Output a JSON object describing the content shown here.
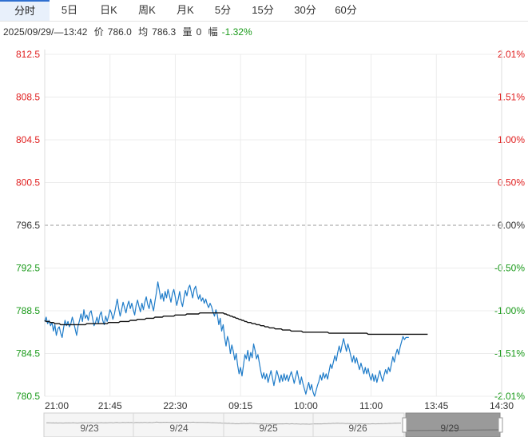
{
  "tabs": [
    {
      "label": "分时",
      "active": true
    },
    {
      "label": "5日",
      "active": false
    },
    {
      "label": "日K",
      "active": false
    },
    {
      "label": "周K",
      "active": false
    },
    {
      "label": "月K",
      "active": false
    },
    {
      "label": "5分",
      "active": false
    },
    {
      "label": "15分",
      "active": false
    },
    {
      "label": "30分",
      "active": false
    },
    {
      "label": "60分",
      "active": false
    }
  ],
  "info": {
    "datetime": "2025/09/29/—13:42",
    "price_label": "价",
    "price": "786.0",
    "avg_label": "均",
    "avg": "786.3",
    "volume_label": "量",
    "volume": "0",
    "change_label": "幅",
    "change": "-1.32%"
  },
  "colors": {
    "price_line": "#1f7cc9",
    "avg_line": "#111111",
    "up": "#e02020",
    "down": "#1a9a1a",
    "neutral": "#333333",
    "grid": "#ececec",
    "zero_line": "#999999"
  },
  "chart_data": {
    "type": "line",
    "title": "",
    "xlabel": "",
    "ylabel": "",
    "base_price": 796.5,
    "ylim": [
      780.5,
      812.5
    ],
    "y_ticks": [
      "812.5",
      "808.5",
      "804.5",
      "800.5",
      "796.5",
      "792.5",
      "788.5",
      "784.5",
      "780.5"
    ],
    "pct_ticks": [
      "2.01%",
      "1.51%",
      "1.00%",
      "0.50%",
      "0.00%",
      "-0.50%",
      "-1.00%",
      "-1.51%",
      "-2.01%"
    ],
    "x_ticks": [
      "21:00",
      "21:45",
      "22:30",
      "09:15",
      "10:00",
      "11:00",
      "13:45",
      "14:30"
    ],
    "x_tick_slots": [
      0,
      45,
      90,
      135,
      180,
      225,
      270,
      315
    ],
    "total_slots": 315,
    "grid": true,
    "series": [
      {
        "name": "",
        "values": [
          787.5,
          787.9,
          787.3,
          787.6,
          787.1,
          787.4,
          786.6,
          787.2,
          786.2,
          786.8,
          787.0,
          786.4,
          786.0,
          786.9,
          787.6,
          787.1,
          787.5,
          787.0,
          787.3,
          787.9,
          787.4,
          786.8,
          786.2,
          787.1,
          787.6,
          788.2,
          787.5,
          788.6,
          787.8,
          788.1,
          787.6,
          788.3,
          788.5,
          787.8,
          787.1,
          787.4,
          787.9,
          787.3,
          788.1,
          788.4,
          787.6,
          787.2,
          788.0,
          787.5,
          788.0,
          788.6,
          788.3,
          787.7,
          788.2,
          788.9,
          789.6,
          788.7,
          788.0,
          788.6,
          789.3,
          788.8,
          788.3,
          789.0,
          789.4,
          788.7,
          789.2,
          788.6,
          788.1,
          789.0,
          789.5,
          788.9,
          788.4,
          789.2,
          788.6,
          789.3,
          789.8,
          789.1,
          788.7,
          789.6,
          789.0,
          788.5,
          789.4,
          790.2,
          791.2,
          790.4,
          789.6,
          790.1,
          789.4,
          790.3,
          789.7,
          790.5,
          789.9,
          789.3,
          790.1,
          790.5,
          789.8,
          789.0,
          789.6,
          790.3,
          789.4,
          788.9,
          789.7,
          790.4,
          789.9,
          790.6,
          790.9,
          790.3,
          789.7,
          790.5,
          790.8,
          790.1,
          789.6,
          790.0,
          789.4,
          789.7,
          789.2,
          789.6,
          789.1,
          788.8,
          789.2,
          788.9,
          788.4,
          788.0,
          788.6,
          788.1,
          787.2,
          787.8,
          786.6,
          787.2,
          786.0,
          785.2,
          786.1,
          785.6,
          784.5,
          785.3,
          784.7,
          783.9,
          784.5,
          783.4,
          782.6,
          783.2,
          782.4,
          783.4,
          784.4,
          784.0,
          784.8,
          783.8,
          784.6,
          784.1,
          785.4,
          784.8,
          784.0,
          784.4,
          783.6,
          782.8,
          782.2,
          782.7,
          782.1,
          782.6,
          781.8,
          782.4,
          782.9,
          782.2,
          781.5,
          782.2,
          782.9,
          782.4,
          781.8,
          782.5,
          781.9,
          782.6,
          782.0,
          782.5,
          781.9,
          782.4,
          782.8,
          782.3,
          781.7,
          782.3,
          782.9,
          782.2,
          781.6,
          782.3,
          781.7,
          781.2,
          780.7,
          781.3,
          781.8,
          781.1,
          781.6,
          780.9,
          780.5,
          781.0,
          781.5,
          781.9,
          782.5,
          782.0,
          782.7,
          782.2,
          782.6,
          782.1,
          782.8,
          783.5,
          783.1,
          783.7,
          784.3,
          783.8,
          784.6,
          785.2,
          784.6,
          785.3,
          785.9,
          785.3,
          784.7,
          785.4,
          784.9,
          784.3,
          783.7,
          784.3,
          783.6,
          784.1,
          783.5,
          783.0,
          783.6,
          783.1,
          782.6,
          783.2,
          782.6,
          783.1,
          782.4,
          782.0,
          782.6,
          781.9,
          782.5,
          781.8,
          782.4,
          782.9,
          782.3,
          781.9,
          782.5,
          783.0,
          782.6,
          783.2,
          782.8,
          783.5,
          784.2,
          783.7,
          784.4,
          784.9,
          784.4,
          785.1,
          785.6,
          786.1,
          785.8,
          786.0,
          786.0,
          786.0
        ]
      },
      {
        "name": "",
        "values": [
          787.6,
          787.5,
          787.5,
          787.5,
          787.4,
          787.4,
          787.4,
          787.3,
          787.3,
          787.3,
          787.3,
          787.2,
          787.2,
          787.2,
          787.2,
          787.2,
          787.2,
          787.2,
          787.2,
          787.2,
          787.2,
          787.2,
          787.2,
          787.2,
          787.2,
          787.2,
          787.2,
          787.2,
          787.2,
          787.3,
          787.3,
          787.3,
          787.3,
          787.3,
          787.3,
          787.3,
          787.3,
          787.3,
          787.3,
          787.3,
          787.3,
          787.3,
          787.3,
          787.3,
          787.4,
          787.4,
          787.4,
          787.4,
          787.4,
          787.4,
          787.4,
          787.4,
          787.5,
          787.5,
          787.5,
          787.5,
          787.5,
          787.5,
          787.5,
          787.6,
          787.6,
          787.6,
          787.6,
          787.6,
          787.7,
          787.7,
          787.7,
          787.7,
          787.7,
          787.7,
          787.8,
          787.8,
          787.8,
          787.8,
          787.8,
          787.8,
          787.9,
          787.9,
          787.9,
          787.9,
          787.9,
          787.9,
          788.0,
          788.0,
          788.0,
          788.0,
          788.0,
          788.0,
          788.0,
          788.0,
          788.1,
          788.1,
          788.1,
          788.1,
          788.1,
          788.1,
          788.1,
          788.1,
          788.2,
          788.2,
          788.2,
          788.2,
          788.2,
          788.2,
          788.2,
          788.2,
          788.2,
          788.3,
          788.3,
          788.3,
          788.3,
          788.3,
          788.3,
          788.3,
          788.3,
          788.3,
          788.3,
          788.3,
          788.3,
          788.3,
          788.3,
          788.3,
          788.3,
          788.3,
          788.2,
          788.2,
          788.1,
          788.1,
          788.0,
          788.0,
          787.9,
          787.9,
          787.8,
          787.8,
          787.7,
          787.7,
          787.6,
          787.6,
          787.5,
          787.5,
          787.4,
          787.4,
          787.4,
          787.3,
          787.3,
          787.3,
          787.2,
          787.2,
          787.2,
          787.1,
          787.1,
          787.1,
          787.0,
          787.0,
          787.0,
          786.9,
          786.9,
          786.9,
          786.9,
          786.8,
          786.8,
          786.8,
          786.8,
          786.8,
          786.7,
          786.7,
          786.7,
          786.7,
          786.7,
          786.7,
          786.6,
          786.6,
          786.6,
          786.6,
          786.6,
          786.6,
          786.6,
          786.6,
          786.5,
          786.5,
          786.5,
          786.5,
          786.5,
          786.5,
          786.5,
          786.5,
          786.5,
          786.5,
          786.5,
          786.5,
          786.5,
          786.5,
          786.5,
          786.5,
          786.5,
          786.5,
          786.4,
          786.4,
          786.4,
          786.4,
          786.4,
          786.4,
          786.4,
          786.4,
          786.4,
          786.4,
          786.4,
          786.4,
          786.4,
          786.4,
          786.4,
          786.4,
          786.4,
          786.4,
          786.4,
          786.4,
          786.4,
          786.4,
          786.4,
          786.4,
          786.4,
          786.4,
          786.4,
          786.3,
          786.3,
          786.3,
          786.3,
          786.3,
          786.3,
          786.3,
          786.3,
          786.3,
          786.3,
          786.3,
          786.3,
          786.3,
          786.3,
          786.3,
          786.3,
          786.3,
          786.3,
          786.3,
          786.3,
          786.3,
          786.3,
          786.3,
          786.3,
          786.3,
          786.3,
          786.3,
          786.3,
          786.3,
          786.3,
          786.3,
          786.3,
          786.3,
          786.3,
          786.3,
          786.3,
          786.3,
          786.3,
          786.3,
          786.3,
          786.3,
          786.3
        ]
      }
    ]
  },
  "navigator": {
    "dates": [
      "9/23",
      "9/24",
      "9/25",
      "9/26",
      "9/29"
    ]
  }
}
